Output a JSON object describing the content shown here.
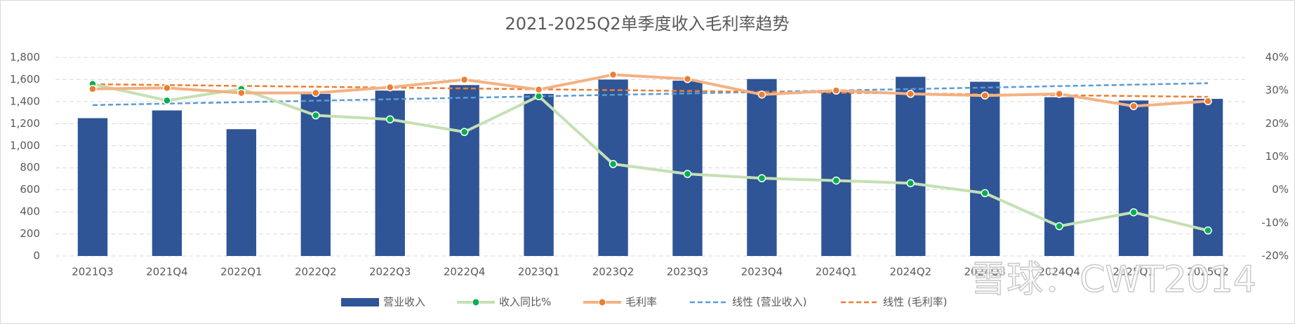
{
  "chart_data": {
    "type": "bar_line",
    "title": "2021-2025Q2单季度收入毛利率趋势",
    "categories": [
      "2021Q3",
      "2021Q4",
      "2022Q1",
      "2022Q2",
      "2022Q3",
      "2022Q4",
      "2023Q1",
      "2023Q2",
      "2023Q3",
      "2023Q4",
      "2024Q1",
      "2024Q2",
      "2024Q3",
      "2024Q4",
      "2025Q1",
      "2025Q2"
    ],
    "series": [
      {
        "name": "营业收入",
        "type": "bar",
        "color": "#2f5597",
        "values": [
          1250,
          1320,
          1150,
          1470,
          1500,
          1550,
          1470,
          1600,
          1590,
          1605,
          1500,
          1625,
          1580,
          1440,
          1410,
          1425
        ]
      },
      {
        "name": "收入同比%",
        "type": "line",
        "axis": "y2",
        "color": "#c5e0b4",
        "marker_color": "#00b050",
        "values": [
          32,
          27,
          30.5,
          22.5,
          21.3,
          17.5,
          28.3,
          7.8,
          4.8,
          3.5,
          2.8,
          2,
          -1,
          -11,
          -6.8,
          -12.3
        ]
      },
      {
        "name": "毛利率",
        "type": "line",
        "axis": "y2",
        "color": "#f4b183",
        "marker_color": "#ed7d31",
        "values": [
          30.5,
          30.8,
          29.3,
          29.3,
          31,
          33.3,
          30.3,
          34.8,
          33.5,
          28.8,
          30,
          29,
          28.5,
          29,
          25.3,
          26.8
        ]
      }
    ],
    "trendlines": [
      {
        "name": "线性 (营业收入)",
        "color": "#5b9bd5"
      },
      {
        "name": "线性 (毛利率)",
        "color": "#ed7d31"
      }
    ],
    "ylim": [
      0,
      1800
    ],
    "yticks": [
      0,
      200,
      400,
      600,
      800,
      {
        "value": 1000,
        "label": "1,000"
      },
      {
        "value": 1200,
        "label": "1,200"
      },
      {
        "value": 1400,
        "label": "1,400"
      },
      {
        "value": 1600,
        "label": "1,600"
      },
      {
        "value": 1800,
        "label": "1,800"
      }
    ],
    "y2lim": [
      -20,
      40
    ],
    "y2ticks": [
      {
        "value": -20,
        "label": "-20%"
      },
      {
        "value": -10,
        "label": "-10%"
      },
      {
        "value": 0,
        "label": "0%"
      },
      {
        "value": 10,
        "label": "10%"
      },
      {
        "value": 20,
        "label": "20%"
      },
      {
        "value": 30,
        "label": "30%"
      },
      {
        "value": 40,
        "label": "40%"
      }
    ],
    "grid": true,
    "legend": "bottom",
    "watermark": "雪球：CWT2014"
  }
}
